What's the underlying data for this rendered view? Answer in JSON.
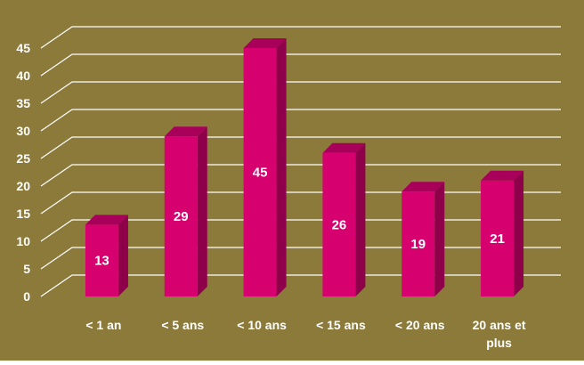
{
  "chart_data": {
    "type": "bar",
    "categories": [
      [
        "< 1 an"
      ],
      [
        "< 5 ans"
      ],
      [
        "< 10 ans"
      ],
      [
        "< 15 ans"
      ],
      [
        "< 20 ans"
      ],
      [
        "20 ans et",
        "plus"
      ]
    ],
    "values": [
      13,
      29,
      45,
      26,
      19,
      21
    ],
    "data_labels": [
      "13",
      "29",
      "45",
      "26",
      "19",
      "21"
    ],
    "y_ticks": [
      "0",
      "5",
      "10",
      "15",
      "20",
      "25",
      "30",
      "35",
      "40",
      "45"
    ],
    "ylim": [
      0,
      45
    ],
    "y_step": 5,
    "grid": true,
    "legend": "none",
    "colors": {
      "background": "#8b7a3a",
      "bar_front": "#d6006f",
      "bar_side": "#8e0049",
      "bar_top": "#a8005a",
      "grid": "#ffffff",
      "text": "#ffffff"
    }
  }
}
